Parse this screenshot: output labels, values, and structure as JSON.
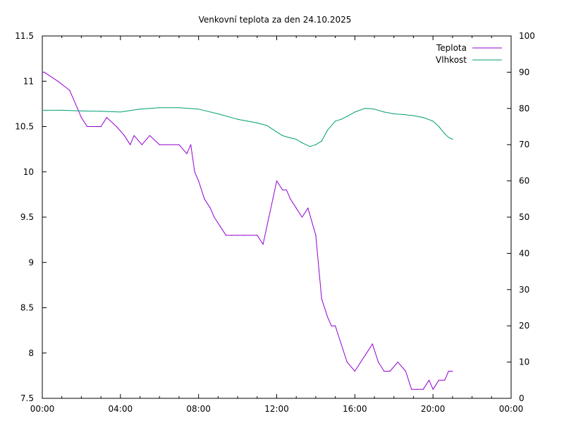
{
  "chart_data": {
    "type": "line",
    "title": "Venkovní teplota za den 24.10.2025",
    "xlabel": "",
    "ylabel": "",
    "y2label": "",
    "x_ticks": [
      "00:00",
      "04:00",
      "08:00",
      "12:00",
      "16:00",
      "20:00",
      "00:00"
    ],
    "x_range_hours": [
      0,
      24
    ],
    "y_ticks": [
      "7.5",
      "8",
      "8.5",
      "9",
      "9.5",
      "10",
      "10.5",
      "11",
      "11.5"
    ],
    "ylim": [
      7.5,
      11.5
    ],
    "y2_ticks": [
      "0",
      "10",
      "20",
      "30",
      "40",
      "50",
      "60",
      "70",
      "80",
      "90",
      "100"
    ],
    "y2lim": [
      0,
      100
    ],
    "grid": false,
    "legend_position": "top-right",
    "series": [
      {
        "name": "Teplota",
        "axis": "left",
        "color": "#9400d3",
        "x_hours": [
          0.0,
          0.1,
          0.8,
          1.4,
          1.8,
          2.0,
          2.3,
          3.0,
          3.3,
          3.8,
          4.2,
          4.5,
          4.7,
          5.1,
          5.5,
          6.0,
          7.0,
          7.4,
          7.6,
          7.8,
          8.0,
          8.3,
          8.6,
          8.8,
          9.1,
          9.4,
          9.7,
          10.0,
          10.3,
          11.0,
          11.3,
          11.6,
          11.8,
          12.0,
          12.3,
          12.5,
          12.7,
          13.0,
          13.3,
          13.6,
          14.0,
          14.3,
          14.6,
          14.8,
          15.0,
          15.3,
          15.6,
          16.0,
          16.3,
          16.6,
          16.9,
          17.2,
          17.5,
          17.8,
          18.2,
          18.6,
          18.9,
          19.2,
          19.5,
          19.8,
          20.0,
          20.3,
          20.6,
          20.8,
          21.0
        ],
        "values": [
          11.1,
          11.1,
          11.0,
          10.9,
          10.7,
          10.6,
          10.5,
          10.5,
          10.6,
          10.5,
          10.4,
          10.3,
          10.4,
          10.3,
          10.4,
          10.3,
          10.3,
          10.2,
          10.3,
          10.0,
          9.9,
          9.7,
          9.6,
          9.5,
          9.4,
          9.3,
          9.3,
          9.3,
          9.3,
          9.3,
          9.2,
          9.5,
          9.7,
          9.9,
          9.8,
          9.8,
          9.7,
          9.6,
          9.5,
          9.6,
          9.3,
          8.6,
          8.4,
          8.3,
          8.3,
          8.1,
          7.9,
          7.8,
          7.9,
          8.0,
          8.1,
          7.9,
          7.8,
          7.8,
          7.9,
          7.8,
          7.6,
          7.6,
          7.6,
          7.7,
          7.6,
          7.7,
          7.7,
          7.8,
          7.8
        ]
      },
      {
        "name": "Vlhkost",
        "axis": "right",
        "color": "#009e73",
        "x_hours": [
          0.0,
          1.0,
          2.0,
          3.0,
          4.0,
          5.0,
          6.0,
          7.0,
          8.0,
          9.0,
          10.0,
          10.5,
          11.0,
          11.5,
          12.0,
          12.3,
          12.6,
          13.0,
          13.3,
          13.7,
          14.0,
          14.3,
          14.6,
          15.0,
          15.3,
          15.6,
          16.0,
          16.5,
          17.0,
          17.5,
          18.0,
          18.5,
          19.0,
          19.5,
          20.0,
          20.3,
          20.6,
          20.8,
          21.0
        ],
        "values": [
          79.5,
          79.5,
          79.3,
          79.2,
          79.0,
          79.8,
          80.2,
          80.2,
          79.8,
          78.5,
          77.0,
          76.5,
          76.0,
          75.3,
          73.5,
          72.5,
          72.0,
          71.5,
          70.5,
          69.5,
          70.0,
          71.0,
          74.0,
          76.5,
          77.0,
          77.8,
          79.0,
          80.0,
          79.8,
          79.0,
          78.5,
          78.3,
          78.0,
          77.5,
          76.5,
          75.0,
          73.0,
          72.0,
          71.5
        ]
      }
    ]
  }
}
